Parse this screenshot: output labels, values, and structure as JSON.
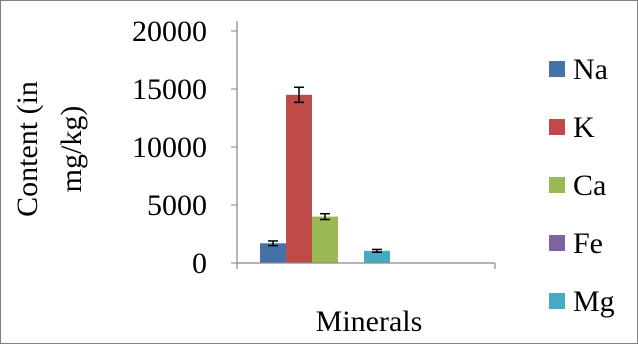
{
  "chart_data": {
    "type": "bar",
    "title": "",
    "xlabel": "Minerals",
    "ylabel_line1": "Content (in",
    "ylabel_line2": "mg/kg)",
    "ylim": [
      0,
      20000
    ],
    "yticks": [
      "0",
      "5000",
      "10000",
      "15000",
      "20000"
    ],
    "ytick_values": [
      0,
      5000,
      10000,
      15000,
      20000
    ],
    "grid": false,
    "legend_position": "right",
    "categories": [
      "Minerals"
    ],
    "series": [
      {
        "name": "Na",
        "values": [
          1700
        ],
        "error": [
          200
        ],
        "color": "#4472A8"
      },
      {
        "name": "K",
        "values": [
          14500
        ],
        "error": [
          650
        ],
        "color": "#BE4B48"
      },
      {
        "name": "Ca",
        "values": [
          4000
        ],
        "error": [
          250
        ],
        "color": "#98B954"
      },
      {
        "name": "Fe",
        "values": [
          0
        ],
        "error": [
          0
        ],
        "color": "#7E62A1"
      },
      {
        "name": "Mg",
        "values": [
          1050
        ],
        "error": [
          120
        ],
        "color": "#46AAC5"
      }
    ]
  }
}
